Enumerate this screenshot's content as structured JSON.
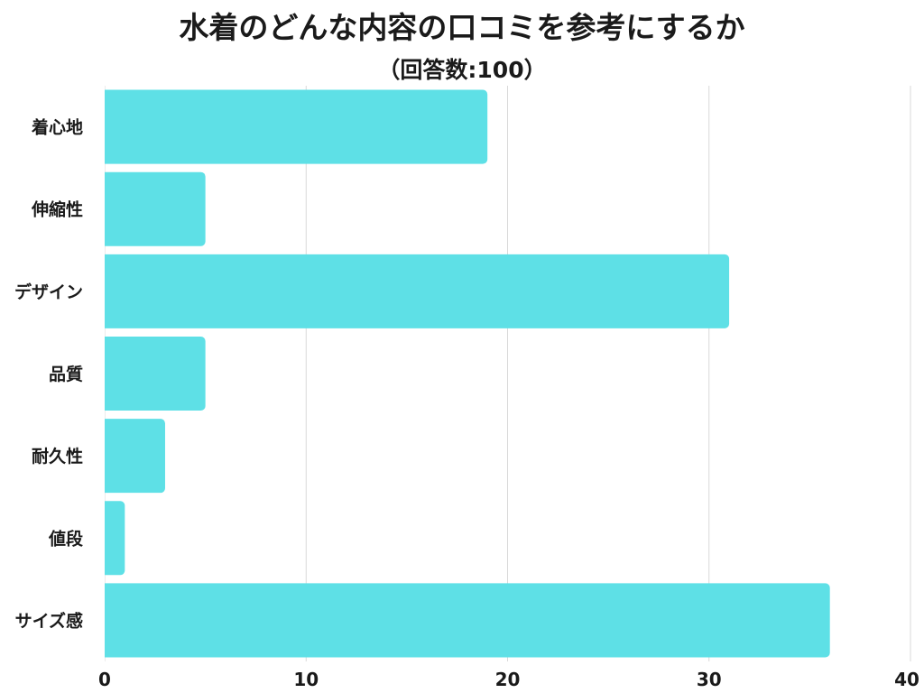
{
  "chart_data": {
    "type": "bar",
    "orientation": "horizontal",
    "title": "水着のどんな内容の口コミを参考にするか",
    "subtitle": "（回答数:100）",
    "categories": [
      "着心地",
      "伸縮性",
      "デザイン",
      "品質",
      "耐久性",
      "値段",
      "サイズ感"
    ],
    "values": [
      19,
      5,
      31,
      5,
      3,
      1,
      36
    ],
    "xlim": [
      0,
      40
    ],
    "xticks": [
      0,
      10,
      20,
      30,
      40
    ],
    "grid": true,
    "bar_color": "#5ee0e6",
    "grid_color": "#d9d9d9"
  }
}
